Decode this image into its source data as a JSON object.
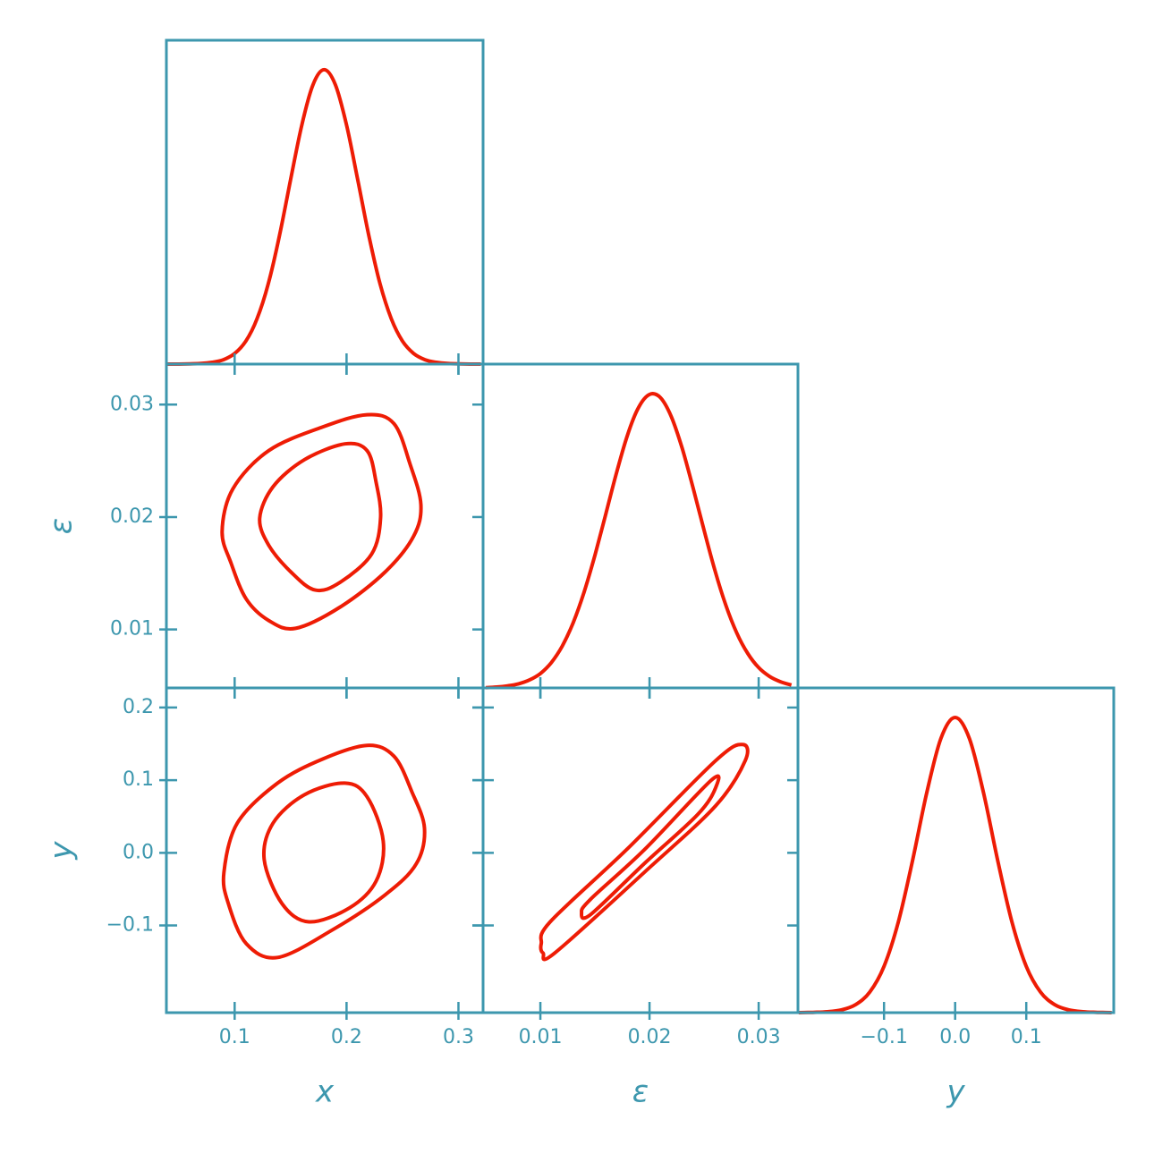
{
  "chart_data": [
    {
      "type": "line",
      "color": "#ee1c05",
      "xlim": [
        0.039,
        0.322
      ],
      "ylim": [
        0,
        1.1
      ],
      "x": [
        0.04,
        0.05,
        0.06,
        0.07,
        0.08,
        0.09,
        0.1,
        0.11,
        0.12,
        0.13,
        0.14,
        0.15,
        0.16,
        0.17,
        0.18,
        0.19,
        0.2,
        0.21,
        0.22,
        0.23,
        0.24,
        0.25,
        0.26,
        0.27,
        0.28,
        0.29,
        0.3,
        0.31,
        0.32
      ],
      "values": [
        0,
        0,
        0.001,
        0.002,
        0.006,
        0.015,
        0.036,
        0.078,
        0.154,
        0.272,
        0.435,
        0.626,
        0.812,
        0.949,
        1,
        0.949,
        0.812,
        0.626,
        0.435,
        0.272,
        0.154,
        0.078,
        0.036,
        0.015,
        0.006,
        0.002,
        0.001,
        0,
        0
      ]
    },
    {
      "type": "contour",
      "color": "#ee1c05",
      "xlim": [
        0.039,
        0.322
      ],
      "ylim": [
        0.0048,
        0.0336
      ],
      "yticks": [
        0.01,
        0.02,
        0.03
      ],
      "ylabel": "ε",
      "series": [
        {
          "x": [
            0.0888,
            0.0984,
            0.1304,
            0.1784,
            0.2184,
            0.2424,
            0.2568,
            0.2664,
            0.26,
            0.2344,
            0.1944,
            0.1544,
            0.1304,
            0.1104,
            0.0968
          ],
          "y": [
            0.0187,
            0.0225,
            0.0259,
            0.028,
            0.0291,
            0.0283,
            0.0247,
            0.0211,
            0.0183,
            0.0151,
            0.012,
            0.0101,
            0.0108,
            0.0127,
            0.0159
          ]
        },
        {
          "x": [
            0.1224,
            0.1344,
            0.1624,
            0.1984,
            0.2184,
            0.2264,
            0.2304,
            0.2224,
            0.1944,
            0.172,
            0.1504,
            0.1304
          ],
          "y": [
            0.0199,
            0.0227,
            0.0251,
            0.0265,
            0.0259,
            0.0231,
            0.0199,
            0.0167,
            0.0142,
            0.0135,
            0.0151,
            0.0175
          ]
        }
      ]
    },
    {
      "type": "line",
      "color": "#ee1c05",
      "xlim": [
        0.00475,
        0.0336
      ],
      "ylim": [
        0,
        1.1
      ],
      "x": [
        0.005,
        0.006,
        0.007,
        0.008,
        0.009,
        0.01,
        0.011,
        0.012,
        0.013,
        0.014,
        0.015,
        0.016,
        0.017,
        0.018,
        0.019,
        0.02,
        0.021,
        0.022,
        0.023,
        0.024,
        0.025,
        0.026,
        0.027,
        0.028,
        0.029,
        0.03,
        0.031,
        0.032,
        0.033
      ],
      "values": [
        0.001,
        0.003,
        0.007,
        0.014,
        0.027,
        0.049,
        0.086,
        0.142,
        0.221,
        0.325,
        0.451,
        0.592,
        0.734,
        0.861,
        0.953,
        0.997,
        0.986,
        0.921,
        0.813,
        0.678,
        0.535,
        0.398,
        0.28,
        0.186,
        0.117,
        0.069,
        0.039,
        0.021,
        0.01
      ]
    },
    {
      "type": "contour",
      "color": "#ee1c05",
      "xlim": [
        0.039,
        0.322
      ],
      "ylim": [
        -0.22,
        0.227
      ],
      "xticks": [
        0.1,
        0.2,
        0.3
      ],
      "xlabel": "x",
      "yticks": [
        {
          "value": -0.1,
          "label": "−0.1"
        },
        {
          "value": 0,
          "label": "0.0"
        },
        0.1,
        0.2
      ],
      "ylabel": "y",
      "series": [
        {
          "x": [
            0.0904,
            0.1024,
            0.1384,
            0.1784,
            0.2184,
            0.2424,
            0.2584,
            0.2696,
            0.2624,
            0.2344,
            0.1864,
            0.1384,
            0.1104,
            0.0944
          ],
          "y": [
            -0.027,
            0.041,
            0.096,
            0.129,
            0.148,
            0.133,
            0.084,
            0.034,
            -0.015,
            -0.058,
            -0.107,
            -0.144,
            -0.125,
            -0.07
          ]
        },
        {
          "x": [
            0.1264,
            0.1344,
            0.1624,
            0.1984,
            0.2184,
            0.2328,
            0.2264,
            0.2024,
            0.1664,
            0.1424
          ],
          "y": [
            -0.009,
            0.041,
            0.08,
            0.096,
            0.077,
            0.016,
            -0.039,
            -0.076,
            -0.095,
            -0.07
          ]
        }
      ]
    },
    {
      "type": "contour",
      "color": "#ee1c05",
      "xlim": [
        0.00475,
        0.0336
      ],
      "ylim": [
        -0.22,
        0.227
      ],
      "xticks": [
        0.01,
        0.02,
        0.03
      ],
      "xlabel": "ε",
      "series": [
        {
          "x": [
            0.01008,
            0.0109,
            0.01787,
            0.02607,
            0.02852,
            0.02877,
            0.02607,
            0.01951,
            0.01131,
            0.01025
          ],
          "y": [
            -0.125,
            -0.095,
            0.004,
            0.127,
            0.149,
            0.127,
            0.065,
            -0.027,
            -0.138,
            -0.138
          ]
        },
        {
          "x": [
            0.01377,
            0.01459,
            0.01951,
            0.02566,
            0.02607,
            0.02443,
            0.01951,
            0.01459
          ],
          "y": [
            -0.082,
            -0.064,
            0.004,
            0.1,
            0.09,
            0.053,
            -0.015,
            -0.085
          ]
        }
      ]
    },
    {
      "type": "line",
      "color": "#ee1c05",
      "xlim": [
        -0.221,
        0.223
      ],
      "ylim": [
        0,
        1.1
      ],
      "xticks": [
        {
          "value": -0.1,
          "label": "−0.1"
        },
        {
          "value": 0,
          "label": "0.0"
        },
        0.1
      ],
      "xlabel": "y",
      "x": [
        -0.22,
        -0.2,
        -0.18,
        -0.16,
        -0.14,
        -0.12,
        -0.1,
        -0.08,
        -0.06,
        -0.04,
        -0.02,
        0,
        0.02,
        0.04,
        0.06,
        0.08,
        0.1,
        0.12,
        0.14,
        0.16,
        0.18,
        0.2,
        0.22
      ],
      "values": [
        0,
        0.001,
        0.003,
        0.009,
        0.027,
        0.07,
        0.157,
        0.306,
        0.514,
        0.744,
        0.929,
        1,
        0.929,
        0.744,
        0.514,
        0.306,
        0.157,
        0.07,
        0.027,
        0.009,
        0.003,
        0.001,
        0
      ]
    }
  ]
}
